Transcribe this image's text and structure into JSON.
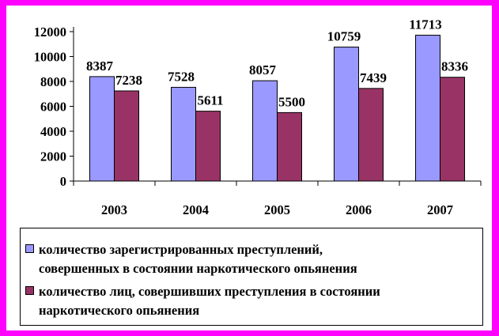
{
  "colors": {
    "background": "#ff00ff",
    "series1": "#9999ff",
    "series2": "#993366"
  },
  "chart_data": {
    "type": "bar",
    "categories": [
      "2003",
      "2004",
      "2005",
      "2006",
      "2007"
    ],
    "ylim": [
      0,
      12000
    ],
    "yticks": [
      "0",
      "2000",
      "4000",
      "6000",
      "8000",
      "10000",
      "12000"
    ],
    "legend_position": "bottom",
    "grid": false,
    "series": [
      {
        "name": "количество зарегистрированных преступлений, совершенных в состоянии наркотического опьянения",
        "values": [
          8387,
          7528,
          8057,
          10759,
          11713
        ],
        "labels": [
          "8387",
          "7528",
          "8057",
          "10759",
          "11713"
        ],
        "legend_lines": [
          "количество зарегистрированных преступлений,",
          "совершенных в состоянии наркотического опьянения"
        ]
      },
      {
        "name": "количество лиц, совершивших преступления в состоянии наркотического опьянения",
        "values": [
          7238,
          5611,
          5500,
          7439,
          8336
        ],
        "labels": [
          "7238",
          "5611",
          "5500",
          "7439",
          "8336"
        ],
        "legend_lines": [
          "количество лиц, совершивших преступления в состоянии",
          "наркотического опьянения"
        ]
      }
    ]
  }
}
